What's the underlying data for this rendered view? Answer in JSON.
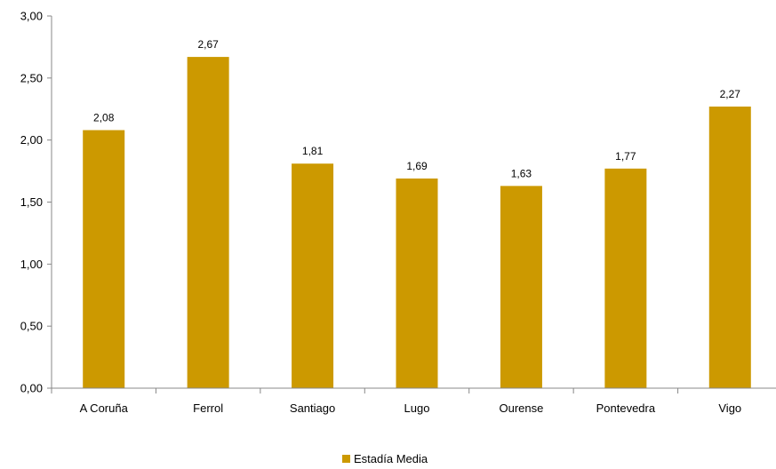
{
  "chart_data": {
    "type": "bar",
    "categories": [
      "A Coruña",
      "Ferrol",
      "Santiago",
      "Lugo",
      "Ourense",
      "Pontevedra",
      "Vigo"
    ],
    "series": [
      {
        "name": "Estadía Media",
        "values": [
          2.08,
          2.67,
          1.81,
          1.69,
          1.63,
          1.77,
          2.27
        ]
      }
    ],
    "data_labels": [
      "2,08",
      "2,67",
      "1,81",
      "1,69",
      "1,63",
      "1,77",
      "2,27"
    ],
    "y_ticks": [
      "0,00",
      "0,50",
      "1,00",
      "1,50",
      "2,00",
      "2,50",
      "3,00"
    ],
    "ylim": [
      0,
      3
    ],
    "grid": false,
    "legend_position": "bottom",
    "colors": {
      "bar": "#CC9900",
      "axis": "#888888"
    }
  }
}
